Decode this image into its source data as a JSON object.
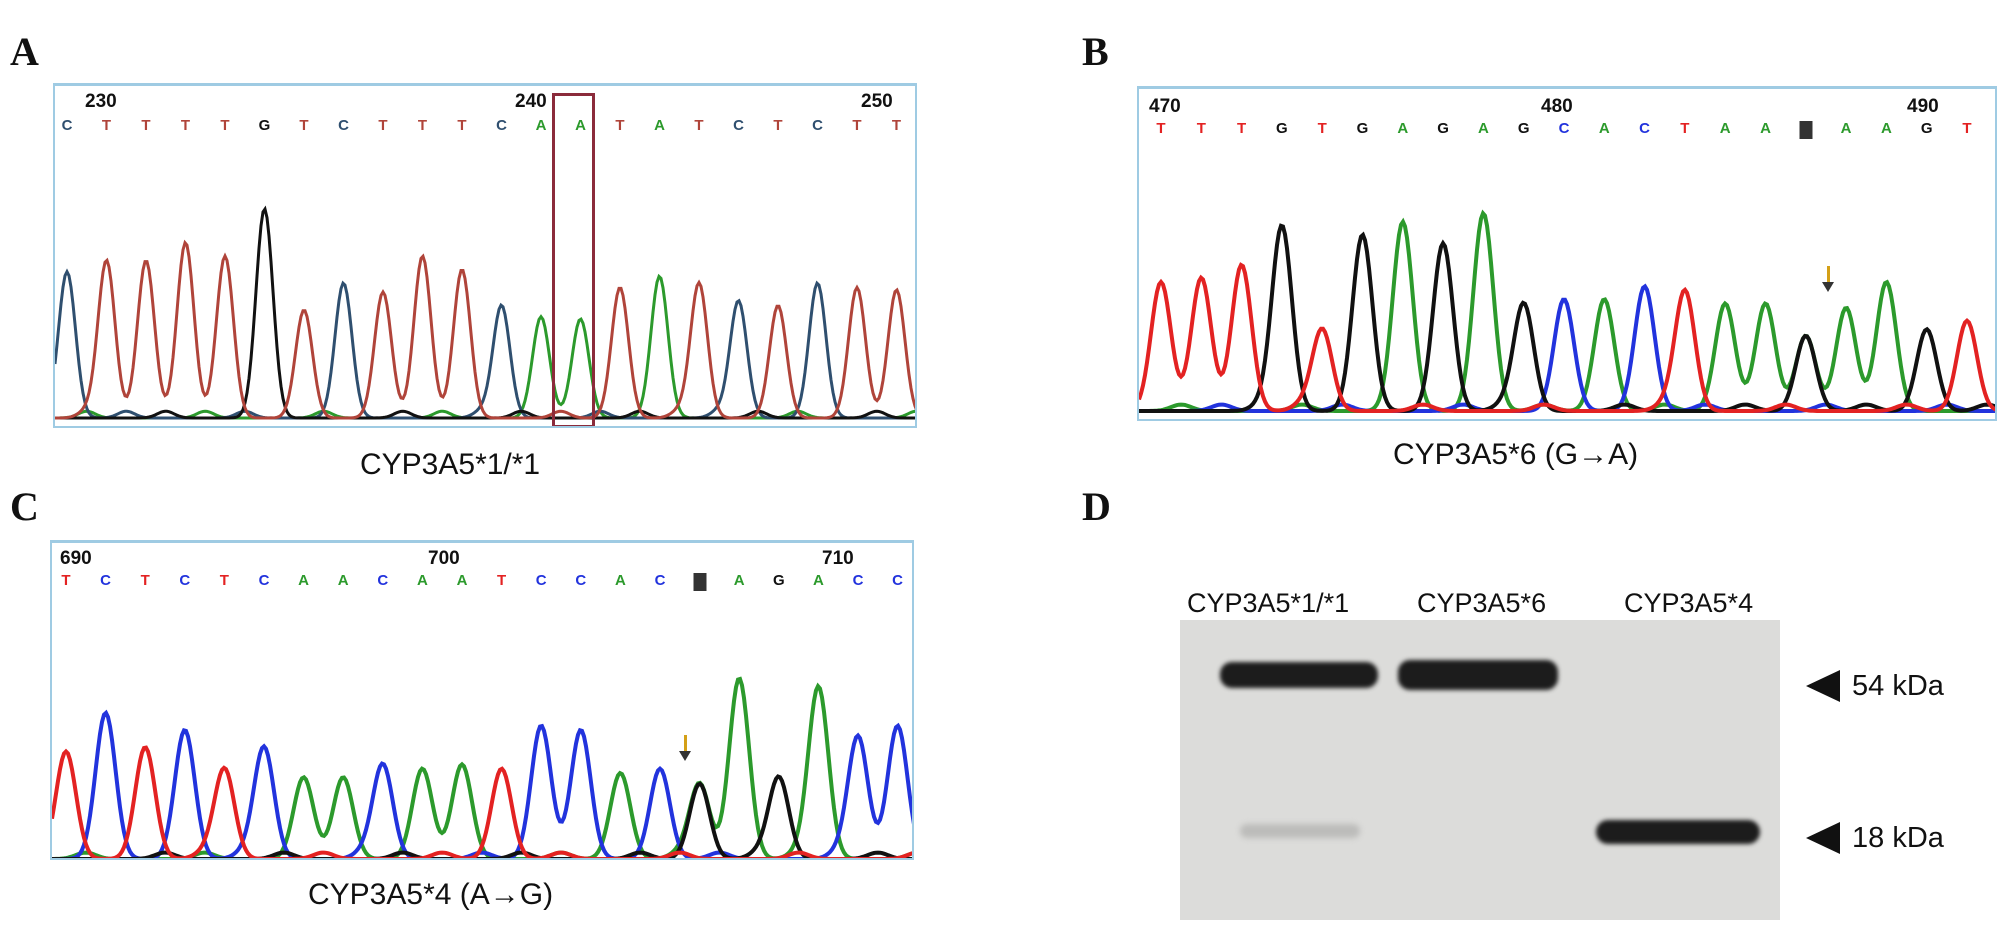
{
  "panels": {
    "a": {
      "letter": "A",
      "caption": "CYP3A5*1/*1",
      "positions": [
        "230",
        "240",
        "250"
      ],
      "bases": [
        "C",
        "T",
        "T",
        "T",
        "T",
        "G",
        "T",
        "C",
        "T",
        "T",
        "T",
        "C",
        "A",
        "A",
        "T",
        "A",
        "T",
        "C",
        "T",
        "C",
        "T",
        "T"
      ],
      "highlight_index": 13
    },
    "b": {
      "letter": "B",
      "caption": "CYP3A5*6 (G→A)",
      "positions": [
        "470",
        "480",
        "490"
      ],
      "bases": [
        "T",
        "T",
        "T",
        "G",
        "T",
        "G",
        "A",
        "G",
        "A",
        "G",
        "C",
        "A",
        "C",
        "T",
        "A",
        "A",
        "N",
        "A",
        "A",
        "G",
        "T"
      ]
    },
    "c": {
      "letter": "C",
      "caption": "CYP3A5*4 (A→G)",
      "positions": [
        "690",
        "700",
        "710"
      ],
      "bases": [
        "T",
        "C",
        "T",
        "C",
        "T",
        "C",
        "A",
        "A",
        "C",
        "A",
        "A",
        "T",
        "C",
        "C",
        "A",
        "C",
        "N",
        "A",
        "G",
        "A",
        "C",
        "C"
      ]
    },
    "d": {
      "letter": "D",
      "lanes": [
        "CYP3A5*1/*1",
        "CYP3A5*6",
        "CYP3A5*4"
      ],
      "markers": [
        "54 kDa",
        "18 kDa"
      ]
    }
  },
  "colors": {
    "A": "#2c9a2c",
    "C": "#2233dd",
    "G": "#111111",
    "T": "#e32222",
    "T_a": "#b0443a",
    "C_a": "#2f4f6f",
    "box": "#9fcbe3",
    "highlight": "#8b2b3b",
    "arrow": "#d4a017"
  }
}
